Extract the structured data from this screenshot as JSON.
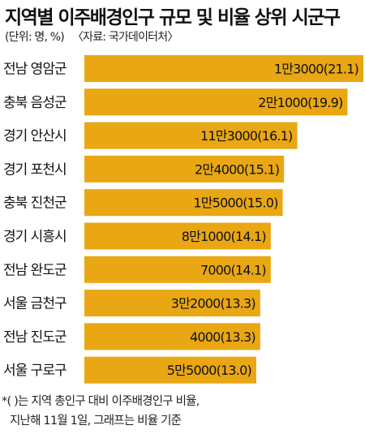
{
  "header": {
    "title": "지역별 이주배경인구 규모 및 비율 상위 시군구",
    "unit": "(단위: 명, %)",
    "source": "〈자료: 국가데이터처〉"
  },
  "footnote": {
    "line1": "*( )는 지역 총인구 대비 이주배경인구 비율,",
    "line2": "지난해 11월 1일, 그래프는 비율 기준"
  },
  "colors": {
    "bar": "#E8A713",
    "text": "#111111"
  },
  "chart_data": {
    "type": "bar",
    "orientation": "horizontal",
    "grid": false,
    "categories": [
      "전남 영암군",
      "충북 음성군",
      "경기 안산시",
      "경기 포천시",
      "충북 진천군",
      "경기 시흥시",
      "전남 완도군",
      "서울 금천구",
      "전남 진도군",
      "서울 구로구"
    ],
    "values": [
      21.1,
      19.9,
      16.1,
      15.1,
      15.0,
      14.1,
      14.1,
      13.3,
      13.3,
      13.0
    ],
    "data_labels": [
      "1만3000(21.1)",
      "2만1000(19.9)",
      "11만3000(16.1)",
      "2만4000(15.1)",
      "1만5000(15.0)",
      "8만1000(14.1)",
      "7000(14.1)",
      "3만2000(13.3)",
      "4000(13.3)",
      "5만5000(13.0)"
    ]
  }
}
